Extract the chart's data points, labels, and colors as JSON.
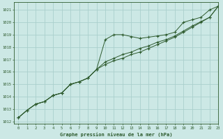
{
  "title": "Graphe pression niveau de la mer (hPa)",
  "background_color": "#cce8e5",
  "grid_color": "#aacfcc",
  "line_color": "#2d5a2d",
  "xlim": [
    -0.5,
    23
  ],
  "ylim": [
    1011.8,
    1021.6
  ],
  "yticks": [
    1012,
    1013,
    1014,
    1015,
    1016,
    1017,
    1018,
    1019,
    1020,
    1021
  ],
  "xticks": [
    0,
    1,
    2,
    3,
    4,
    5,
    6,
    7,
    8,
    9,
    10,
    11,
    12,
    13,
    14,
    15,
    16,
    17,
    18,
    19,
    20,
    21,
    22,
    23
  ],
  "series1_x": [
    0,
    1,
    2,
    3,
    4,
    5,
    6,
    7,
    8,
    9,
    10,
    11,
    12,
    13,
    14,
    15,
    16,
    17,
    18,
    19,
    20,
    21,
    22,
    23
  ],
  "series1_y": [
    1012.3,
    1012.9,
    1013.4,
    1013.6,
    1014.1,
    1014.3,
    1015.0,
    1015.2,
    1015.5,
    1016.2,
    1018.6,
    1019.0,
    1019.0,
    1018.85,
    1018.7,
    1018.8,
    1018.9,
    1019.0,
    1019.2,
    1020.0,
    1020.2,
    1020.4,
    1021.0,
    1021.3
  ],
  "series2_x": [
    0,
    1,
    2,
    3,
    4,
    5,
    6,
    7,
    8,
    9,
    10,
    11,
    12,
    13,
    14,
    15,
    16,
    17,
    18,
    19,
    20,
    21,
    22,
    23
  ],
  "series2_y": [
    1012.3,
    1012.9,
    1013.4,
    1013.6,
    1014.1,
    1014.3,
    1015.0,
    1015.2,
    1015.5,
    1016.2,
    1016.6,
    1016.9,
    1017.1,
    1017.4,
    1017.6,
    1017.9,
    1018.2,
    1018.5,
    1018.8,
    1019.2,
    1019.6,
    1020.0,
    1020.4,
    1021.3
  ],
  "series3_x": [
    0,
    1,
    2,
    3,
    4,
    5,
    6,
    7,
    8,
    9,
    10,
    11,
    12,
    13,
    14,
    15,
    16,
    17,
    18,
    19,
    20,
    21,
    22,
    23
  ],
  "series3_y": [
    1012.3,
    1012.9,
    1013.4,
    1013.6,
    1014.1,
    1014.3,
    1015.0,
    1015.2,
    1015.5,
    1016.2,
    1016.8,
    1017.1,
    1017.4,
    1017.6,
    1017.9,
    1018.1,
    1018.4,
    1018.6,
    1018.9,
    1019.3,
    1019.7,
    1020.05,
    1020.4,
    1021.3
  ]
}
